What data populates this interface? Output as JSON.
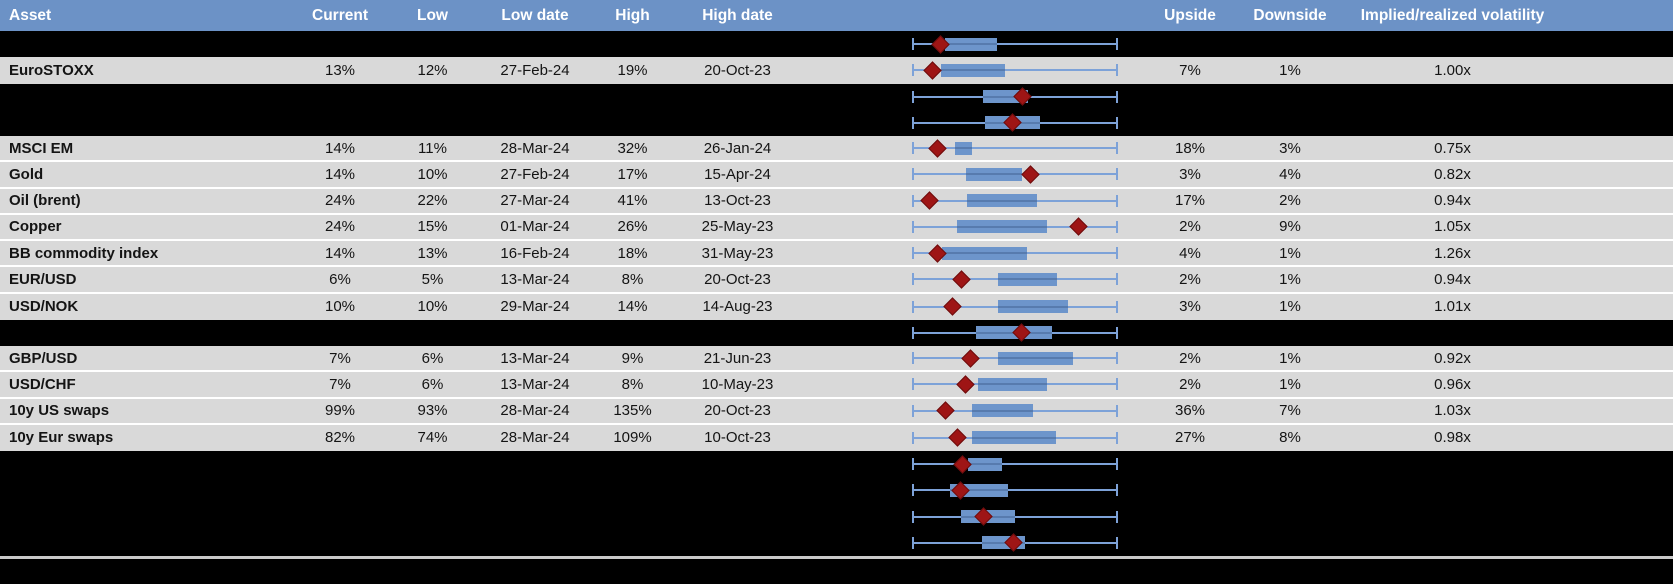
{
  "colors": {
    "header_bg": "#6C92C6",
    "row_bg": "#D9D9D9",
    "hidden_bg": "#000000",
    "box_fill": "#6D95CB",
    "whisker": "#7DA2D8",
    "diamond": "#9E1515"
  },
  "header": {
    "asset": "Asset",
    "current": "Current",
    "low": "Low",
    "low_date": "Low date",
    "high": "High",
    "high_date": "High date",
    "upside": "Upside",
    "downside": "Downside",
    "impl": "Implied/realized volatility"
  },
  "chart_data": {
    "type": "table",
    "title": "Implied volatility ranges with box-whisker plots (whiskers span Low..High, diamond = current level)",
    "columns": [
      "Asset",
      "Current",
      "Low",
      "Low date",
      "High",
      "High date",
      "Upside",
      "Downside",
      "Implied/realized volatility"
    ],
    "rows": [
      {
        "kind": "hidden",
        "plot": {
          "box": [
            0.161,
            0.415
          ],
          "marker": 0.137
        }
      },
      {
        "kind": "data",
        "asset": "EuroSTOXX",
        "current": "13%",
        "low": "12%",
        "low_date": "27-Feb-24",
        "high": "19%",
        "high_date": "20-Oct-23",
        "upside": "7%",
        "downside": "1%",
        "impl": "1.00x",
        "plot": {
          "box": [
            0.141,
            0.451
          ],
          "marker": 0.097
        }
      },
      {
        "kind": "hidden",
        "plot": {
          "box": [
            0.346,
            0.563
          ],
          "marker": 0.534
        }
      },
      {
        "kind": "hidden",
        "plot": {
          "box": [
            0.354,
            0.621
          ],
          "marker": 0.49
        }
      },
      {
        "kind": "data",
        "asset": "MSCI EM",
        "current": "14%",
        "low": "11%",
        "low_date": "28-Mar-24",
        "high": "32%",
        "high_date": "26-Jan-24",
        "upside": "18%",
        "downside": "3%",
        "impl": "0.75x",
        "plot": {
          "box": [
            0.209,
            0.293
          ],
          "marker": 0.125
        }
      },
      {
        "kind": "data",
        "asset": "Gold",
        "current": "14%",
        "low": "10%",
        "low_date": "27-Feb-24",
        "high": "17%",
        "high_date": "15-Apr-24",
        "upside": "3%",
        "downside": "4%",
        "impl": "0.82x",
        "plot": {
          "box": [
            0.262,
            0.533
          ],
          "marker": 0.573
        }
      },
      {
        "kind": "data",
        "asset": "Oil (brent)",
        "current": "24%",
        "low": "22%",
        "low_date": "27-Mar-24",
        "high": "41%",
        "high_date": "13-Oct-23",
        "upside": "17%",
        "downside": "2%",
        "impl": "0.94x",
        "plot": {
          "box": [
            0.266,
            0.605
          ],
          "marker": 0.087
        }
      },
      {
        "kind": "data",
        "asset": "Copper",
        "current": "24%",
        "low": "15%",
        "low_date": "01-Mar-24",
        "high": "26%",
        "high_date": "25-May-23",
        "upside": "2%",
        "downside": "9%",
        "impl": "1.05x",
        "plot": {
          "box": [
            0.218,
            0.655
          ],
          "marker": 0.806
        }
      },
      {
        "kind": "data",
        "asset": "BB commodity index",
        "current": "14%",
        "low": "13%",
        "low_date": "16-Feb-24",
        "high": "18%",
        "high_date": "31-May-23",
        "upside": "4%",
        "downside": "1%",
        "impl": "1.26x",
        "plot": {
          "box": [
            0.144,
            0.557
          ],
          "marker": 0.123
        }
      },
      {
        "kind": "data",
        "asset": "EUR/USD",
        "current": "6%",
        "low": "5%",
        "low_date": "13-Mar-24",
        "high": "8%",
        "high_date": "20-Oct-23",
        "upside": "2%",
        "downside": "1%",
        "impl": "0.94x",
        "plot": {
          "box": [
            0.418,
            0.703
          ],
          "marker": 0.241
        }
      },
      {
        "kind": "data",
        "asset": "USD/NOK",
        "current": "10%",
        "low": "10%",
        "low_date": "29-Mar-24",
        "high": "14%",
        "high_date": "14-Aug-23",
        "upside": "3%",
        "downside": "1%",
        "impl": "1.01x",
        "plot": {
          "box": [
            0.419,
            0.756
          ],
          "marker": 0.196
        }
      },
      {
        "kind": "hidden",
        "plot": {
          "box": [
            0.309,
            0.678
          ],
          "marker": 0.533
        }
      },
      {
        "kind": "data",
        "asset": "GBP/USD",
        "current": "7%",
        "low": "6%",
        "low_date": "13-Mar-24",
        "high": "9%",
        "high_date": "21-Jun-23",
        "upside": "2%",
        "downside": "1%",
        "impl": "0.92x",
        "plot": {
          "box": [
            0.416,
            0.783
          ],
          "marker": 0.282
        }
      },
      {
        "kind": "data",
        "asset": "USD/CHF",
        "current": "7%",
        "low": "6%",
        "low_date": "13-Mar-24",
        "high": "8%",
        "high_date": "10-May-23",
        "upside": "2%",
        "downside": "1%",
        "impl": "0.96x",
        "plot": {
          "box": [
            0.319,
            0.654
          ],
          "marker": 0.261
        }
      },
      {
        "kind": "data",
        "asset": "10y US swaps",
        "current": "99%",
        "low": "93%",
        "low_date": "28-Mar-24",
        "high": "135%",
        "high_date": "20-Oct-23",
        "upside": "36%",
        "downside": "7%",
        "impl": "1.03x",
        "plot": {
          "box": [
            0.29,
            0.586
          ],
          "marker": 0.164
        }
      },
      {
        "kind": "data",
        "asset": "10y Eur swaps",
        "current": "82%",
        "low": "74%",
        "low_date": "28-Mar-24",
        "high": "109%",
        "high_date": "10-Oct-23",
        "upside": "27%",
        "downside": "8%",
        "impl": "0.98x",
        "plot": {
          "box": [
            0.29,
            0.699
          ],
          "marker": 0.22
        }
      },
      {
        "kind": "hidden",
        "plot": {
          "box": [
            0.273,
            0.438
          ],
          "marker": 0.246
        }
      },
      {
        "kind": "hidden",
        "plot": {
          "box": [
            0.184,
            0.467
          ],
          "marker": 0.233
        }
      },
      {
        "kind": "hidden",
        "plot": {
          "box": [
            0.238,
            0.5
          ],
          "marker": 0.346
        }
      },
      {
        "kind": "hidden",
        "plot": {
          "box": [
            0.338,
            0.549
          ],
          "marker": 0.492
        }
      }
    ]
  }
}
